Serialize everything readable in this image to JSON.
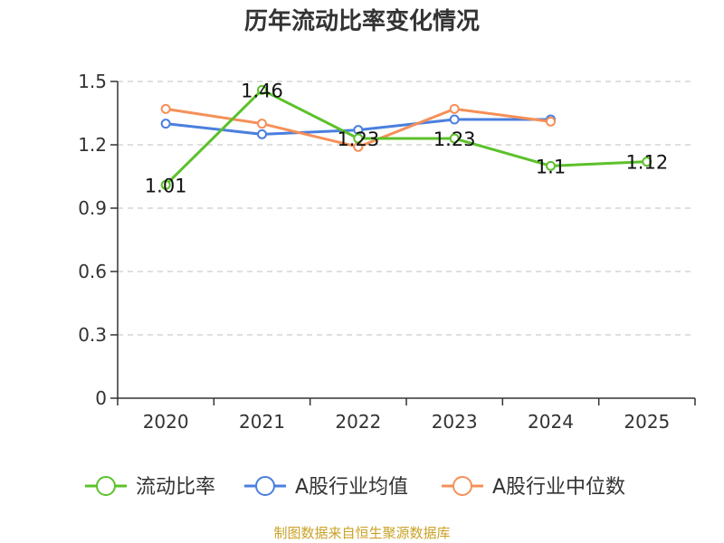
{
  "chart_data": {
    "type": "line",
    "title": "历年流动比率变化情况",
    "categories": [
      "2020",
      "2021",
      "2022",
      "2023",
      "2024",
      "2025"
    ],
    "y_ticks": [
      "0",
      "0.3",
      "0.6",
      "0.9",
      "1.2",
      "1.5"
    ],
    "ylim": [
      0,
      1.5
    ],
    "grid": true,
    "legend_position": "bottom",
    "series": [
      {
        "name": "流动比率",
        "color": "#5cc12b",
        "values": [
          1.01,
          1.46,
          1.23,
          1.23,
          1.1,
          1.12
        ],
        "labels": [
          "1.01",
          "1.46",
          "1.23",
          "1.23",
          "1.1",
          "1.12"
        ]
      },
      {
        "name": "A股行业均值",
        "color": "#4a7fde",
        "values": [
          1.3,
          1.25,
          1.27,
          1.32,
          1.32,
          null
        ]
      },
      {
        "name": "A股行业中位数",
        "color": "#f59058",
        "values": [
          1.37,
          1.3,
          1.19,
          1.37,
          1.31,
          null
        ]
      }
    ],
    "source": "制图数据来自恒生聚源数据库"
  }
}
